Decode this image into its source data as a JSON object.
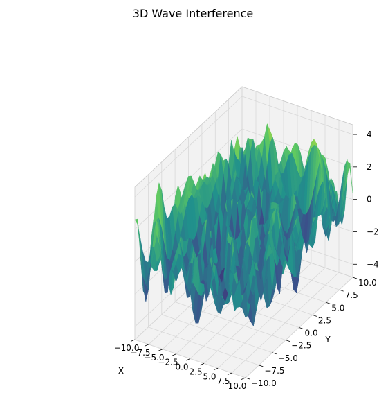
{
  "chart_data": {
    "type": "surface3d",
    "title": "3D Wave Interference",
    "xlabel": "X",
    "ylabel": "Y",
    "zlabel": "",
    "xlim": [
      -10,
      10
    ],
    "ylim": [
      -10,
      10
    ],
    "zlim": [
      -4.8,
      4.6
    ],
    "x_ticks": [
      "−10.0",
      "−7.5",
      "−5.0",
      "−2.5",
      "0.0",
      "2.5",
      "5.0",
      "7.5",
      "10.0"
    ],
    "y_ticks": [
      "−10.0",
      "−7.5",
      "−5.0",
      "−2.5",
      "0.0",
      "2.5",
      "5.0",
      "7.5",
      "10.0"
    ],
    "z_ticks": [
      "−4",
      "−2",
      "0",
      "2",
      "4"
    ],
    "colormap": "viridis",
    "colormap_stops": [
      "#440154",
      "#3b528b",
      "#21918c",
      "#5ec962",
      "#fde725"
    ],
    "grid": true,
    "pane_color": "#f2f2f2",
    "grid_color": "#d8d8d8"
  }
}
